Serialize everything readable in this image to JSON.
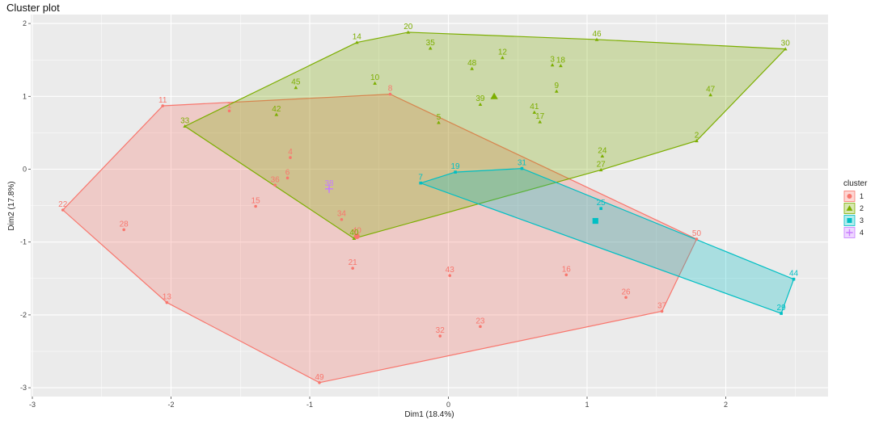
{
  "chart_data": {
    "type": "scatter",
    "title": "Cluster plot",
    "xlabel": "Dim1 (18.4%)",
    "ylabel": "Dim2 (17.8%)",
    "xlim": [
      -3,
      2.75
    ],
    "ylim": [
      -3.1,
      2.05
    ],
    "xticks": [
      -3,
      -2,
      -1,
      0,
      1,
      2
    ],
    "yticks": [
      -3,
      -2,
      -1,
      0,
      1,
      2
    ],
    "grid": true,
    "legend": {
      "title": "cluster",
      "placement": "right",
      "entries": [
        {
          "label": "1",
          "cluster": "1"
        },
        {
          "label": "2",
          "cluster": "2"
        },
        {
          "label": "3",
          "cluster": "3"
        },
        {
          "label": "4",
          "cluster": "4"
        }
      ]
    },
    "clusters": [
      {
        "name": "1",
        "color": "#F8766D",
        "shape": "circle",
        "points": [
          {
            "label": "1",
            "x": -1.58,
            "y": 0.8
          },
          {
            "label": "4",
            "x": -1.14,
            "y": 0.16
          },
          {
            "label": "6",
            "x": -1.16,
            "y": -0.12
          },
          {
            "label": "8",
            "x": -0.42,
            "y": 1.03
          },
          {
            "label": "11",
            "x": -2.06,
            "y": 0.87
          },
          {
            "label": "13",
            "x": -2.03,
            "y": -1.83
          },
          {
            "label": "15",
            "x": -1.39,
            "y": -0.51
          },
          {
            "label": "16",
            "x": 0.85,
            "y": -1.45
          },
          {
            "label": "21",
            "x": -0.69,
            "y": -1.36
          },
          {
            "label": "22",
            "x": -2.78,
            "y": -0.56
          },
          {
            "label": "23",
            "x": 0.23,
            "y": -2.16
          },
          {
            "label": "26",
            "x": 1.28,
            "y": -1.76
          },
          {
            "label": "28",
            "x": -2.34,
            "y": -0.83
          },
          {
            "label": "32",
            "x": -0.06,
            "y": -2.29
          },
          {
            "label": "34",
            "x": -0.77,
            "y": -0.69
          },
          {
            "label": "36",
            "x": -1.25,
            "y": -0.22
          },
          {
            "label": "37",
            "x": 1.54,
            "y": -1.95
          },
          {
            "label": "40",
            "x": -0.66,
            "y": -0.92
          },
          {
            "label": "43",
            "x": 0.01,
            "y": -1.46
          },
          {
            "label": "49",
            "x": -0.93,
            "y": -2.93
          },
          {
            "label": "50",
            "x": 1.79,
            "y": -0.96
          }
        ],
        "hull": [
          "11",
          "8",
          "50",
          "37",
          "49",
          "13",
          "22"
        ],
        "center": {
          "x": -0.66,
          "y": -0.92
        }
      },
      {
        "name": "2",
        "color": "#7CAE00",
        "shape": "triangle",
        "points": [
          {
            "label": "2",
            "x": 1.79,
            "y": 0.39
          },
          {
            "label": "3",
            "x": 0.75,
            "y": 1.43
          },
          {
            "label": "5",
            "x": -0.07,
            "y": 0.64
          },
          {
            "label": "9",
            "x": 0.78,
            "y": 1.07
          },
          {
            "label": "10",
            "x": -0.53,
            "y": 1.18
          },
          {
            "label": "12",
            "x": 0.39,
            "y": 1.53
          },
          {
            "label": "14",
            "x": -0.66,
            "y": 1.74
          },
          {
            "label": "17",
            "x": 0.66,
            "y": 0.65
          },
          {
            "label": "18",
            "x": 0.81,
            "y": 1.42
          },
          {
            "label": "20",
            "x": -0.29,
            "y": 1.88
          },
          {
            "label": "24",
            "x": 1.11,
            "y": 0.18
          },
          {
            "label": "27",
            "x": 1.1,
            "y": -0.01
          },
          {
            "label": "30",
            "x": 2.43,
            "y": 1.65
          },
          {
            "label": "33",
            "x": -1.9,
            "y": 0.59
          },
          {
            "label": "35",
            "x": -0.13,
            "y": 1.66
          },
          {
            "label": "39",
            "x": 0.23,
            "y": 0.89
          },
          {
            "label": "40",
            "x": -0.68,
            "y": -0.95
          },
          {
            "label": "41",
            "x": 0.62,
            "y": 0.78
          },
          {
            "label": "42",
            "x": -1.24,
            "y": 0.75
          },
          {
            "label": "45",
            "x": -1.1,
            "y": 1.12
          },
          {
            "label": "46",
            "x": 1.07,
            "y": 1.78
          },
          {
            "label": "47",
            "x": 1.89,
            "y": 1.02
          },
          {
            "label": "48",
            "x": 0.17,
            "y": 1.38
          }
        ],
        "hull": [
          "14",
          "20",
          "46",
          "30",
          "2",
          "27",
          "40",
          "33"
        ],
        "center": {
          "x": 0.33,
          "y": 1.0
        }
      },
      {
        "name": "3",
        "color": "#00BFC4",
        "shape": "square",
        "points": [
          {
            "label": "7",
            "x": -0.2,
            "y": -0.19
          },
          {
            "label": "19",
            "x": 0.05,
            "y": -0.04
          },
          {
            "label": "25",
            "x": 1.1,
            "y": -0.54
          },
          {
            "label": "29",
            "x": 2.4,
            "y": -1.98
          },
          {
            "label": "31",
            "x": 0.53,
            "y": 0.01
          },
          {
            "label": "44",
            "x": 2.49,
            "y": -1.51
          }
        ],
        "hull": [
          "7",
          "19",
          "31",
          "44",
          "29"
        ],
        "center": {
          "x": 1.06,
          "y": -0.71
        }
      },
      {
        "name": "4",
        "color": "#C77CFF",
        "shape": "cross",
        "points": [
          {
            "label": "38",
            "x": -0.86,
            "y": -0.27
          }
        ],
        "hull": [],
        "center": {
          "x": -0.86,
          "y": -0.27
        }
      }
    ]
  }
}
